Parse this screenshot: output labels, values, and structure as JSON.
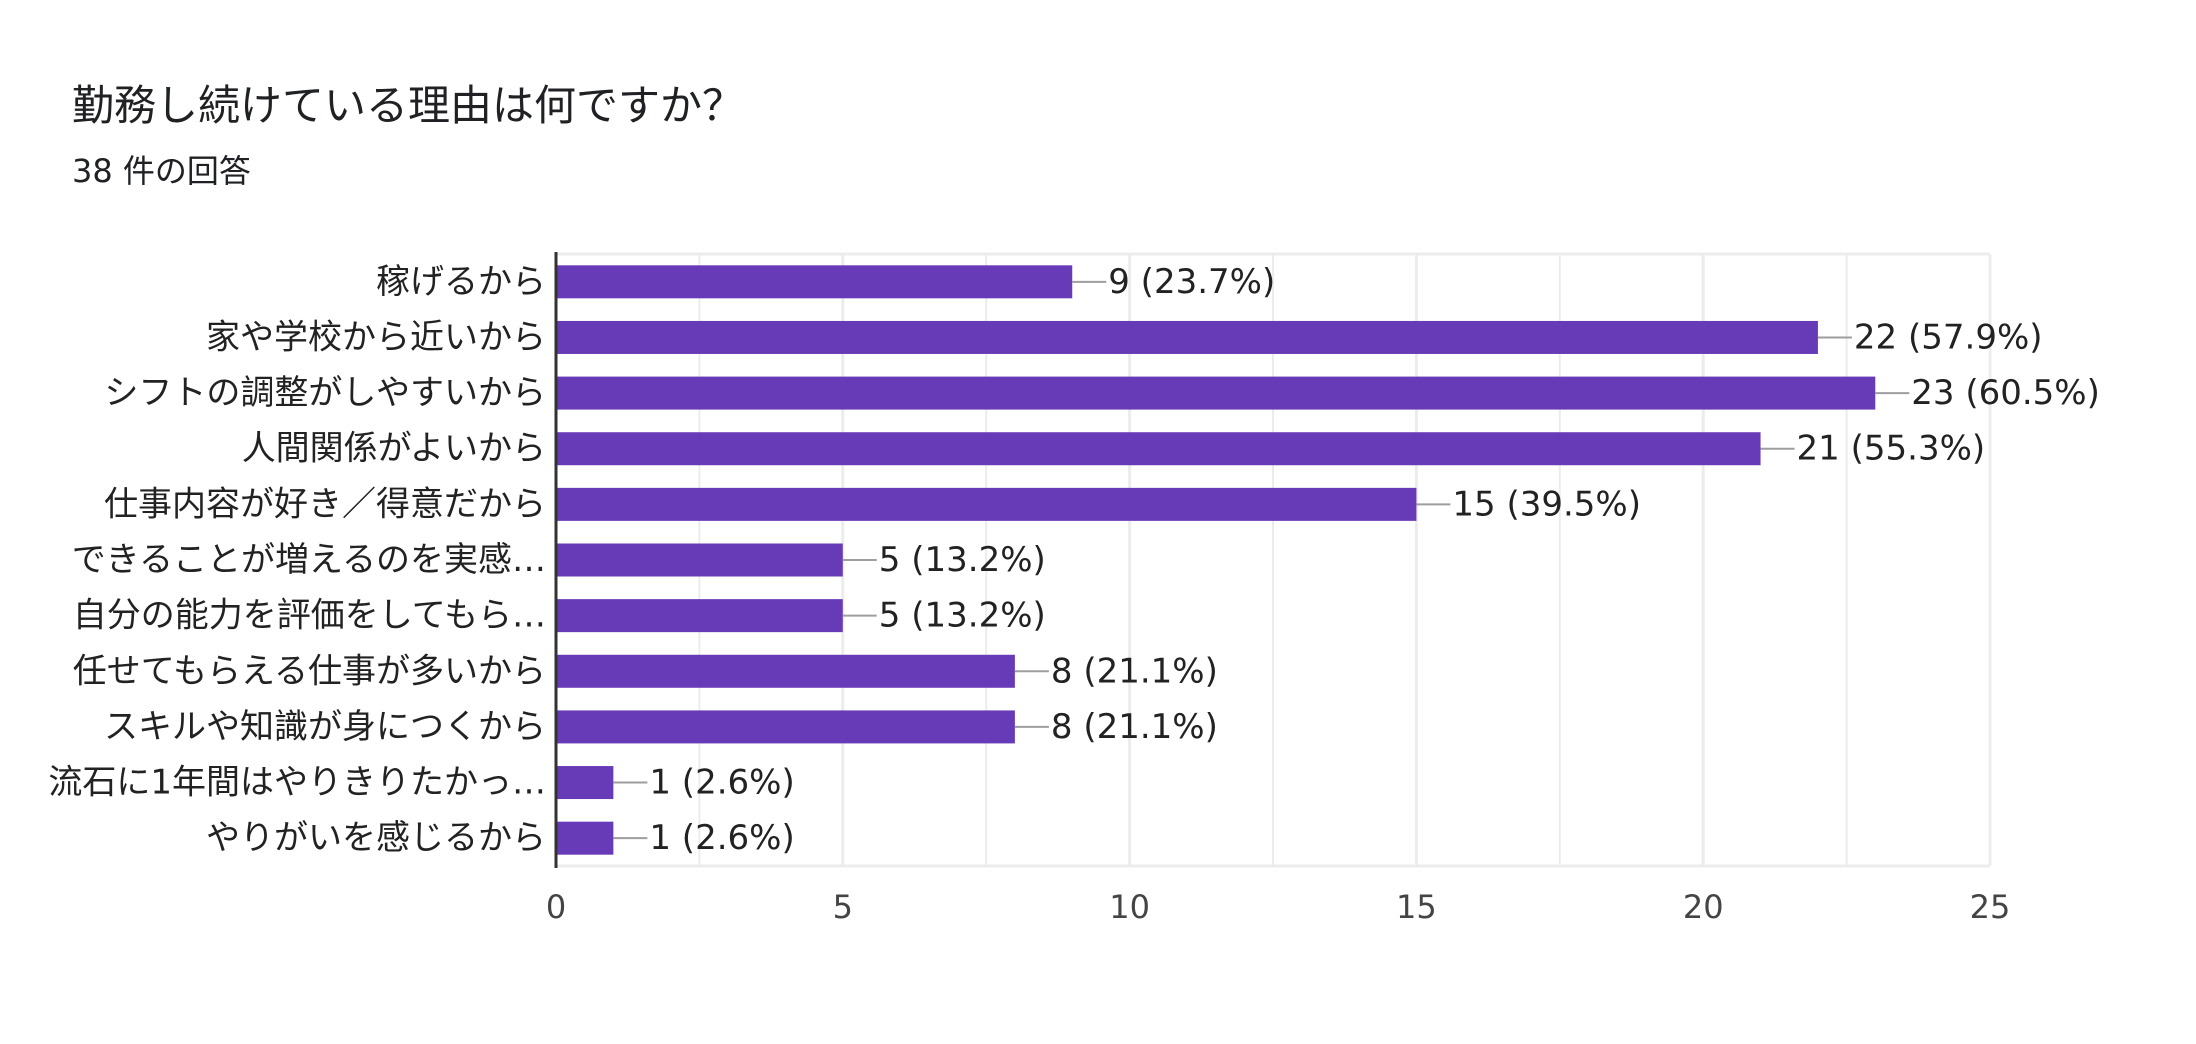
{
  "chart_data": {
    "type": "bar",
    "orientation": "horizontal",
    "title": "勤務し続けている理由は何ですか？",
    "subtitle": "38 件の回答",
    "categories": [
      "稼げるから",
      "家や学校から近いから",
      "シフトの調整がしやすいから",
      "人間関係がよいから",
      "仕事内容が好き／得意だから",
      "できることが増えるのを実感…",
      "自分の能力を評価をしてもら…",
      "任せてもらえる仕事が多いから",
      "スキルや知識が身につくから",
      "流石に1年間はやりきりたかっ…",
      "やりがいを感じるから"
    ],
    "values": [
      9,
      22,
      23,
      21,
      15,
      5,
      5,
      8,
      8,
      1,
      1
    ],
    "data_labels": [
      "9 (23.7%)",
      "22 (57.9%)",
      "23 (60.5%)",
      "21 (55.3%)",
      "15 (39.5%)",
      "5 (13.2%)",
      "5 (13.2%)",
      "8 (21.1%)",
      "8 (21.1%)",
      "1 (2.6%)",
      "1 (2.6%)"
    ],
    "xlim": [
      0,
      25
    ],
    "xticks": [
      "0",
      "5",
      "10",
      "15",
      "20",
      "25"
    ],
    "grid": true,
    "bar_color": "#673ab7"
  }
}
